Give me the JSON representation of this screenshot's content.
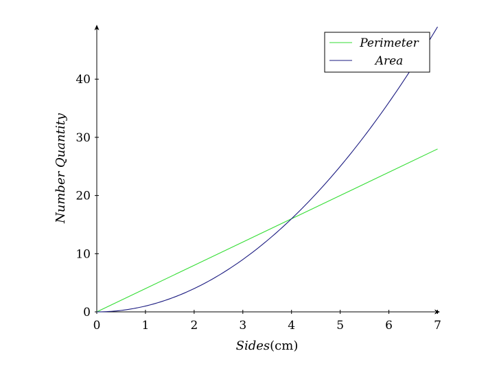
{
  "chart_data": {
    "type": "line",
    "xlabel_main": "Sides",
    "xlabel_unit": "(cm)",
    "ylabel": "Number Quantity",
    "xlim": [
      0,
      7
    ],
    "ylim": [
      0,
      49
    ],
    "xticks": [
      "0",
      "1",
      "2",
      "3",
      "4",
      "5",
      "6",
      "7"
    ],
    "yticks": [
      "0",
      "10",
      "20",
      "30",
      "40"
    ],
    "grid": false,
    "legend_position": "top-right",
    "series": [
      {
        "name": "Perimeter",
        "color": "#33dd33",
        "x": [
          0,
          1,
          2,
          3,
          4,
          5,
          6,
          7
        ],
        "y": [
          0,
          4,
          8,
          12,
          16,
          20,
          24,
          28
        ]
      },
      {
        "name": "Area",
        "color": "#1a1a80",
        "x": [
          0,
          0.5,
          1,
          1.5,
          2,
          2.5,
          3,
          3.5,
          4,
          4.5,
          5,
          5.5,
          6,
          6.5,
          7
        ],
        "y": [
          0,
          0.25,
          1,
          2.25,
          4,
          6.25,
          9,
          12.25,
          16,
          20.25,
          25,
          30.25,
          36,
          42.25,
          49
        ]
      }
    ]
  }
}
